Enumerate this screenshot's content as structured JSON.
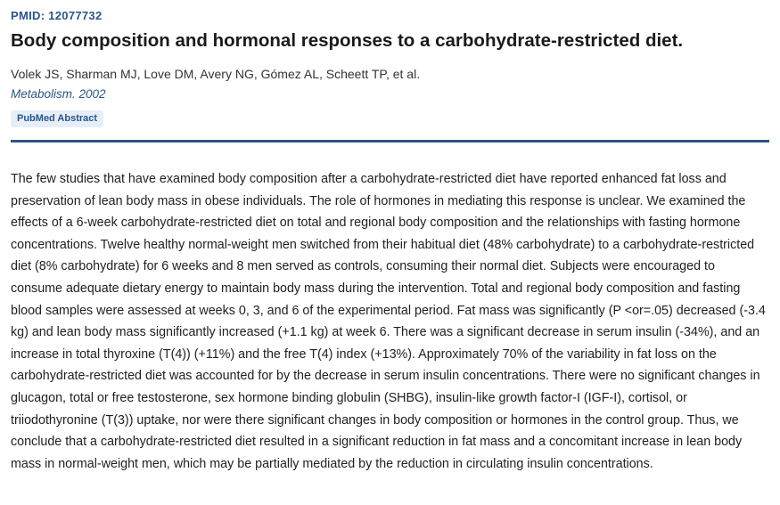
{
  "article": {
    "pmid_label": "PMID: 12077732",
    "title": "Body composition and hormonal responses to a carbohydrate-restricted diet.",
    "authors": "Volek JS, Sharman MJ, Love DM, Avery NG, Gómez AL, Scheett TP, et al.",
    "journal": "Metabolism. 2002",
    "badge": "PubMed Abstract",
    "abstract": "The few studies that have examined body composition after a carbohydrate-restricted diet have reported enhanced fat loss and preservation of lean body mass in obese individuals. The role of hormones in mediating this response is unclear. We examined the effects of a 6-week carbohydrate-restricted diet on total and regional body composition and the relationships with fasting hormone concentrations. Twelve healthy normal-weight men switched from their habitual diet (48% carbohydrate) to a carbohydrate-restricted diet (8% carbohydrate) for 6 weeks and 8 men served as controls, consuming their normal diet. Subjects were encouraged to consume adequate dietary energy to maintain body mass during the intervention. Total and regional body composition and fasting blood samples were assessed at weeks 0, 3, and 6 of the experimental period. Fat mass was significantly (P <or=.05) decreased (-3.4 kg) and lean body mass significantly increased (+1.1 kg) at week 6. There was a significant decrease in serum insulin (-34%), and an increase in total thyroxine (T(4)) (+11%) and the free T(4) index (+13%). Approximately 70% of the variability in fat loss on the carbohydrate-restricted diet was accounted for by the decrease in serum insulin concentrations. There were no significant changes in glucagon, total or free testosterone, sex hormone binding globulin (SHBG), insulin-like growth factor-I (IGF-I), cortisol, or triiodothyronine (T(3)) uptake, nor were there significant changes in body composition or hormones in the control group. Thus, we conclude that a carbohydrate-restricted diet resulted in a significant reduction in fat mass and a concomitant increase in lean body mass in normal-weight men, which may be partially mediated by the reduction in circulating insulin concentrations."
  },
  "colors": {
    "accent": "#2a5689",
    "badge_bg": "#e6eef8",
    "text": "#212121"
  }
}
